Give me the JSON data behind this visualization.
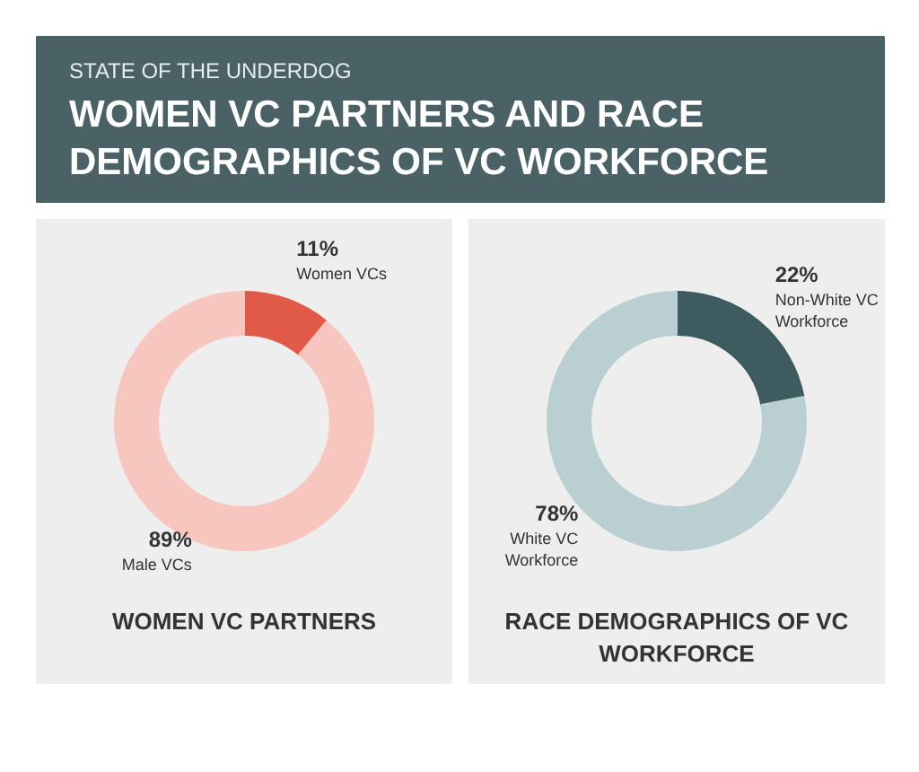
{
  "chart_data": [
    {
      "type": "donut",
      "subtitle": "STATE OF THE UNDERDOG",
      "title": "WOMEN VC PARTNERS AND RACE DEMOGRAPHICS OF VC WORKFORCE",
      "xlabel": "WOMEN VC PARTNERS",
      "categories": [
        "Women VCs",
        "Male VCs"
      ],
      "values": [
        11,
        89
      ],
      "value_labels": [
        "11%",
        "89%"
      ],
      "colors": [
        "#e05a47",
        "#f7c6bf"
      ]
    },
    {
      "type": "donut",
      "xlabel": "RACE DEMOGRAPHICS OF VC WORKFORCE",
      "categories": [
        "Non-White VC Workforce",
        "White VC Workforce"
      ],
      "values": [
        22,
        78
      ],
      "value_labels": [
        "22%",
        "78%"
      ],
      "colors": [
        "#3e5b5f",
        "#b9cfd2"
      ]
    }
  ]
}
